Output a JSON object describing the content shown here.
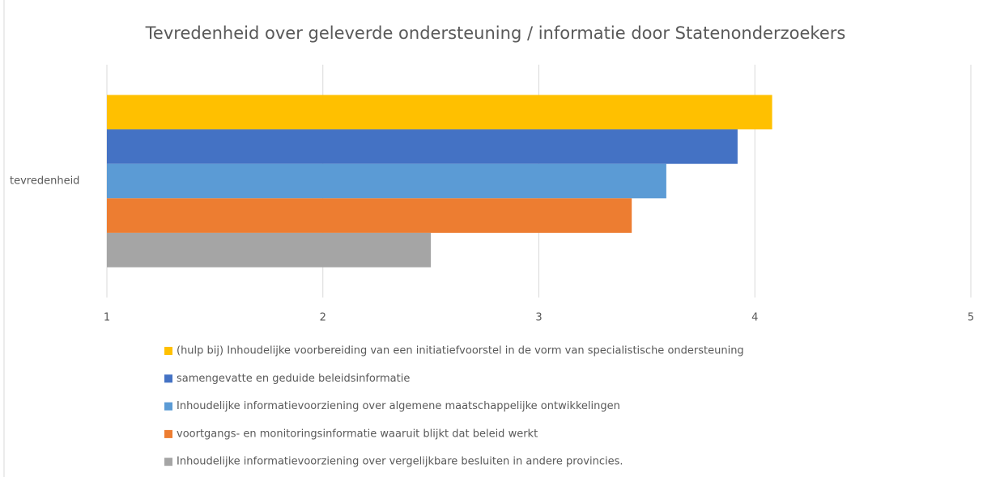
{
  "chart_data": {
    "type": "bar",
    "orientation": "horizontal",
    "title": "Tevredenheid over geleverde ondersteuning / informatie door Statenonderzoekers",
    "categories": [
      "tevredenheid"
    ],
    "series": [
      {
        "name": "(hulp bij) Inhoudelijke voorbereiding van een initiatiefvoorstel in de vorm van specialistische ondersteuning",
        "color": "#ffc000",
        "values": [
          4.08
        ]
      },
      {
        "name": "samengevatte en geduide beleidsinformatie",
        "color": "#4472c4",
        "values": [
          3.92
        ]
      },
      {
        "name": "Inhoudelijke informatievoorziening over algemene maatschappelijke ontwikkelingen",
        "color": "#5b9bd5",
        "values": [
          3.59
        ]
      },
      {
        "name": "voortgangs- en monitoringsinformatie waaruit blijkt dat beleid werkt",
        "color": "#ed7d31",
        "values": [
          3.43
        ]
      },
      {
        "name": "Inhoudelijke informatievoorziening over vergelijkbare besluiten in andere provincies.",
        "color": "#a5a5a5",
        "values": [
          2.5
        ]
      }
    ],
    "xlim": [
      1,
      5
    ],
    "xticks": [
      1,
      2,
      3,
      4,
      5
    ],
    "grid": true,
    "legend": "bottom"
  }
}
